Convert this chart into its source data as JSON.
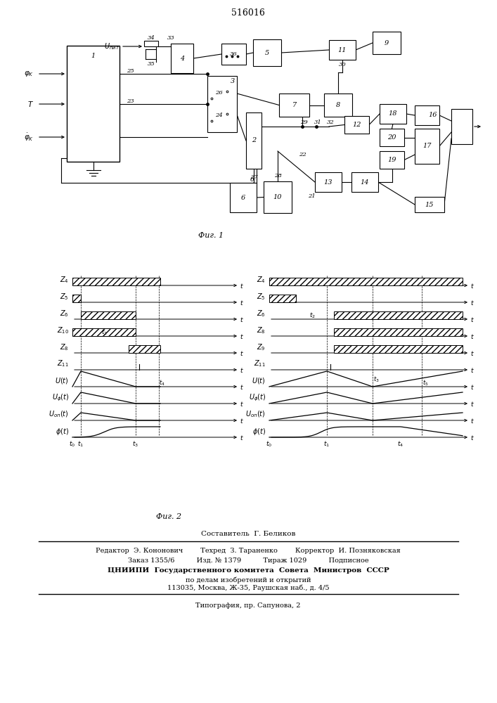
{
  "title": "516016",
  "fig1_caption": "Фиг. 1",
  "fig2_caption": "Фиг. 2",
  "footer_lines": [
    "Составитель  Г. Беликов",
    "Редактор  Э. Кононович        Техред  З. Тараненко        Корректор  И. Позняковская",
    "Заказ 1355/6          Изд. № 1379          Тираж 1029          Подписное",
    "ЦНИИПИ  Государственного комитета  Совета  Министров  СССР",
    "по делам изобретений и открытий",
    "113035, Москва, Ж-35, Раушская наб., д. 4/5",
    "Типография, пр. Сапунова, 2"
  ],
  "background": "#ffffff"
}
